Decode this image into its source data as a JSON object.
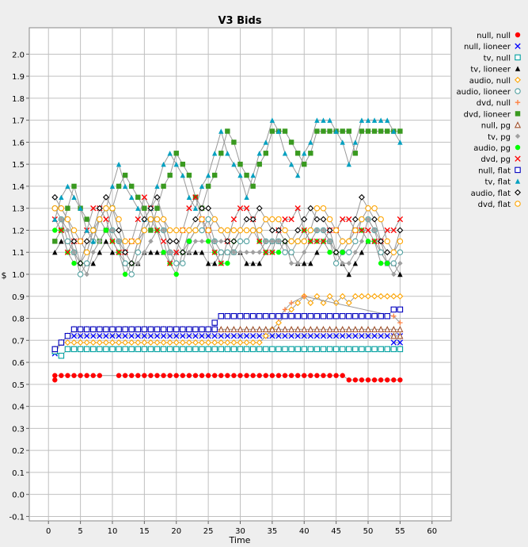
{
  "chart_data": {
    "type": "scatter",
    "title": "V3 Bids",
    "xlabel": "Time",
    "ylabel": "$",
    "xlim": [
      -3,
      63
    ],
    "ylim": [
      -0.12,
      2.12
    ],
    "xticks": [
      0,
      5,
      10,
      15,
      20,
      25,
      30,
      35,
      40,
      45,
      50,
      55,
      60
    ],
    "yticks": [
      -0.1,
      0.0,
      0.1,
      0.2,
      0.3,
      0.4,
      0.5,
      0.6,
      0.7,
      0.8,
      0.9,
      1.0,
      1.1,
      1.2,
      1.3,
      1.4,
      1.5,
      1.6,
      1.7,
      1.8,
      1.9,
      2.0
    ],
    "ytick_labels": [
      "-0.1",
      "0.0",
      "0.1",
      "0.2",
      "0.3",
      "0.4",
      "0.5",
      "0.6",
      "0.7",
      "0.8",
      "0.9",
      "1.0",
      "1.1",
      "1.2",
      "1.3",
      "1.4",
      "1.5",
      "1.6",
      "1.7",
      "1.8",
      "1.9",
      "2.0"
    ],
    "grid": true,
    "legend_position": "right",
    "series": [
      {
        "name": "null, null",
        "color": "#ff0000",
        "marker": "circle-filled",
        "segments": [
          [
            1,
            0.52
          ],
          [
            1,
            0.54
          ],
          [
            8,
            0.54,
            "step"
          ],
          [
            11,
            0.54
          ],
          [
            46,
            0.54,
            "step"
          ],
          [
            47,
            0.52
          ],
          [
            55,
            0.52,
            "step"
          ]
        ]
      },
      {
        "name": "null, lioneer",
        "color": "#0000ff",
        "marker": "x",
        "segments": [
          [
            1,
            0.64
          ],
          [
            2,
            0.69
          ],
          [
            3,
            0.72
          ],
          [
            48,
            0.72,
            "step"
          ],
          [
            55,
            0.72,
            "step"
          ],
          [
            54,
            0.69
          ],
          [
            55,
            0.69
          ]
        ]
      },
      {
        "name": "tv, null",
        "color": "#00a0a0",
        "marker": "square-open",
        "segments": [
          [
            1,
            0.65
          ],
          [
            2,
            0.63
          ],
          [
            3,
            0.66
          ],
          [
            55,
            0.66,
            "step"
          ]
        ]
      },
      {
        "name": "tv, lioneer",
        "color": "#000000",
        "marker": "triangle-filled",
        "zigzag": {
          "start": 1,
          "end": 55,
          "low": 1.05,
          "high": 1.2,
          "phase": 1
        }
      },
      {
        "name": "audio, null",
        "color": "#ffa500",
        "marker": "diamond-open",
        "segments": [
          [
            1,
            0.66
          ],
          [
            2,
            0.69
          ],
          [
            33,
            0.69,
            "step"
          ],
          [
            34,
            0.72
          ],
          [
            35,
            0.75
          ],
          [
            36,
            0.78
          ],
          [
            37,
            0.81
          ],
          [
            38,
            0.84
          ],
          [
            39,
            0.87
          ],
          [
            40,
            0.9
          ],
          [
            41,
            0.87
          ],
          [
            42,
            0.9
          ],
          [
            43,
            0.87
          ],
          [
            44,
            0.9
          ],
          [
            45,
            0.87
          ],
          [
            46,
            0.9
          ],
          [
            47,
            0.87
          ],
          [
            48,
            0.9
          ],
          [
            55,
            0.9,
            "step"
          ]
        ]
      },
      {
        "name": "audio, lioneer",
        "color": "#50a0a0",
        "marker": "circle-open",
        "zigzag": {
          "start": 1,
          "end": 55,
          "low": 1.05,
          "high": 1.45,
          "phase": 3
        }
      },
      {
        "name": "dvd, null",
        "color": "#ff8040",
        "marker": "plus",
        "segments": [
          [
            36,
            0.8
          ],
          [
            37,
            0.84
          ],
          [
            38,
            0.87
          ],
          [
            40,
            0.9
          ],
          [
            54,
            0.81
          ],
          [
            55,
            0.78
          ]
        ]
      },
      {
        "name": "dvd, lioneer",
        "color": "#3a9a20",
        "marker": "square-filled",
        "zigzag": {
          "start": 1,
          "end": 55,
          "low": 1.05,
          "high": 1.65,
          "phase": 0,
          "trend": 0.011
        }
      },
      {
        "name": "null, pg",
        "color": "#a0522d",
        "marker": "triangle-open",
        "segments": [
          [
            1,
            0.66
          ],
          [
            2,
            0.69
          ],
          [
            3,
            0.72
          ],
          [
            4,
            0.75
          ],
          [
            55,
            0.75,
            "step"
          ],
          [
            54,
            0.72
          ],
          [
            55,
            0.72
          ]
        ]
      },
      {
        "name": "tv, pg",
        "color": "#a0a0a0",
        "marker": "diamond-filled",
        "zigzag": {
          "start": 1,
          "end": 55,
          "low": 1.05,
          "high": 1.35,
          "phase": 2
        }
      },
      {
        "name": "audio, pg",
        "color": "#00ff00",
        "marker": "circle-filled",
        "zigzag": {
          "start": 1,
          "end": 55,
          "low": 1.05,
          "high": 1.4,
          "phase": 4
        }
      },
      {
        "name": "dvd, pg",
        "color": "#ff0000",
        "marker": "x",
        "zigzag": {
          "start": 1,
          "end": 55,
          "low": 1.1,
          "high": 1.5,
          "phase": 5
        }
      },
      {
        "name": "null, flat",
        "color": "#0000c0",
        "marker": "square-open",
        "segments": [
          [
            1,
            0.66
          ],
          [
            2,
            0.69
          ],
          [
            3,
            0.72
          ],
          [
            4,
            0.75
          ],
          [
            26,
            0.75,
            "step"
          ],
          [
            26,
            0.78
          ],
          [
            27,
            0.81
          ],
          [
            53,
            0.81,
            "step"
          ],
          [
            54,
            0.84
          ],
          [
            55,
            0.84
          ]
        ]
      },
      {
        "name": "tv, flat",
        "color": "#00a0c0",
        "marker": "triangle-filled",
        "zigzag": {
          "start": 1,
          "end": 55,
          "low": 1.1,
          "high": 1.7,
          "phase": 1,
          "trend": 0.009
        }
      },
      {
        "name": "audio, flat",
        "color": "#000000",
        "marker": "diamond-open",
        "zigzag": {
          "start": 1,
          "end": 55,
          "low": 1.1,
          "high": 1.55,
          "phase": 3
        }
      },
      {
        "name": "dvd, flat",
        "color": "#ffa500",
        "marker": "circle-open",
        "zigzag": {
          "start": 1,
          "end": 55,
          "low": 1.15,
          "high": 1.4,
          "phase": 2
        }
      }
    ]
  }
}
